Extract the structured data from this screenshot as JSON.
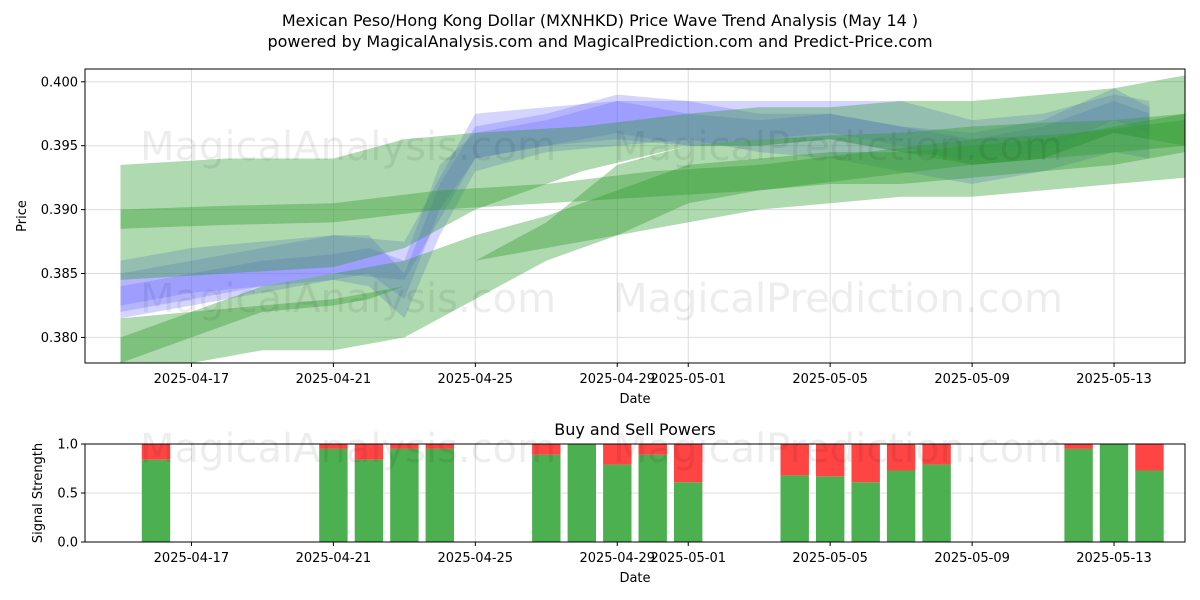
{
  "figure": {
    "title_line1": "Mexican Peso/Hong Kong Dollar (MXNHKD) Price Wave Trend Analysis (May 14 )",
    "title_line2": "powered by MagicalAnalysis.com and MagicalPrediction.com and Predict-Price.com",
    "watermark_left": "MagicalAnalysis.com",
    "watermark_right": "MagicalPrediction.com"
  },
  "colors": {
    "blue_band": "#6666ff",
    "green_band": "#2e9a2e",
    "buy": "#4caf50",
    "sell": "#ff4444",
    "grid": "#dddddd"
  },
  "chart_data": [
    {
      "type": "area",
      "title": "",
      "xlabel": "Date",
      "ylabel": "Price",
      "ylim": [
        0.378,
        0.401
      ],
      "xlim": [
        "2025-04-14",
        "2025-05-15"
      ],
      "x_ticks": [
        "2025-04-17",
        "2025-04-21",
        "2025-04-25",
        "2025-04-29",
        "2025-05-01",
        "2025-05-05",
        "2025-05-09",
        "2025-05-13"
      ],
      "y_ticks": [
        0.38,
        0.385,
        0.39,
        0.395,
        0.4
      ],
      "grid": true,
      "series": [
        {
          "color": "blue",
          "dates": [
            "2025-04-15",
            "2025-04-17",
            "2025-04-19",
            "2025-04-21",
            "2025-04-22",
            "2025-04-23",
            "2025-04-24",
            "2025-04-25",
            "2025-04-27",
            "2025-04-29",
            "2025-05-01",
            "2025-05-03",
            "2025-05-05",
            "2025-05-07",
            "2025-05-09",
            "2025-05-11",
            "2025-05-13",
            "2025-05-14"
          ],
          "low": [
            0.382,
            0.383,
            0.384,
            0.3845,
            0.385,
            0.383,
            0.39,
            0.394,
            0.395,
            0.396,
            0.395,
            0.395,
            0.3955,
            0.3945,
            0.394,
            0.3945,
            0.397,
            0.396
          ],
          "high": [
            0.384,
            0.385,
            0.386,
            0.3865,
            0.387,
            0.386,
            0.3935,
            0.396,
            0.397,
            0.3985,
            0.3975,
            0.397,
            0.3975,
            0.3965,
            0.396,
            0.397,
            0.3995,
            0.398
          ]
        },
        {
          "color": "blue",
          "dates": [
            "2025-04-15",
            "2025-04-17",
            "2025-04-19",
            "2025-04-21",
            "2025-04-22",
            "2025-04-23",
            "2025-04-24",
            "2025-04-25",
            "2025-04-27",
            "2025-04-29",
            "2025-05-01",
            "2025-05-03",
            "2025-05-05",
            "2025-05-07",
            "2025-05-09",
            "2025-05-11",
            "2025-05-13",
            "2025-05-14"
          ],
          "low": [
            0.3815,
            0.3825,
            0.3835,
            0.3845,
            0.384,
            0.3815,
            0.388,
            0.393,
            0.3945,
            0.395,
            0.3955,
            0.3945,
            0.394,
            0.393,
            0.392,
            0.393,
            0.3945,
            0.394
          ],
          "high": [
            0.385,
            0.386,
            0.387,
            0.388,
            0.388,
            0.385,
            0.392,
            0.3965,
            0.3975,
            0.399,
            0.3985,
            0.3975,
            0.3975,
            0.3965,
            0.3955,
            0.3965,
            0.3985,
            0.3975
          ]
        },
        {
          "color": "blue",
          "dates": [
            "2025-04-15",
            "2025-04-17",
            "2025-04-19",
            "2025-04-21",
            "2025-04-23",
            "2025-04-25",
            "2025-04-27",
            "2025-04-29",
            "2025-05-01",
            "2025-05-03",
            "2025-05-05",
            "2025-05-07",
            "2025-05-09",
            "2025-05-11",
            "2025-05-13",
            "2025-05-14"
          ],
          "low": [
            0.3825,
            0.3835,
            0.384,
            0.385,
            0.3845,
            0.394,
            0.395,
            0.3955,
            0.395,
            0.3955,
            0.396,
            0.395,
            0.3935,
            0.394,
            0.396,
            0.3955
          ],
          "high": [
            0.386,
            0.387,
            0.3875,
            0.388,
            0.3875,
            0.3975,
            0.398,
            0.3985,
            0.3985,
            0.3985,
            0.3985,
            0.3985,
            0.397,
            0.3975,
            0.399,
            0.3985
          ]
        },
        {
          "color": "green",
          "dates": [
            "2025-04-15",
            "2025-04-18",
            "2025-04-21",
            "2025-04-23",
            "2025-04-25",
            "2025-04-28",
            "2025-05-01",
            "2025-05-03",
            "2025-05-05",
            "2025-05-07",
            "2025-05-09",
            "2025-05-11",
            "2025-05-13",
            "2025-05-15"
          ],
          "low": [
            0.3845,
            0.385,
            0.3855,
            0.387,
            0.39,
            0.393,
            0.395,
            0.395,
            0.3955,
            0.3945,
            0.3935,
            0.394,
            0.396,
            0.395
          ],
          "high": [
            0.3935,
            0.394,
            0.394,
            0.3955,
            0.396,
            0.3965,
            0.3975,
            0.398,
            0.398,
            0.3985,
            0.3985,
            0.399,
            0.3995,
            0.4005
          ]
        },
        {
          "color": "green",
          "dates": [
            "2025-04-15",
            "2025-04-18",
            "2025-04-21",
            "2025-04-24",
            "2025-04-27",
            "2025-04-30",
            "2025-05-03",
            "2025-05-06",
            "2025-05-09",
            "2025-05-12",
            "2025-05-15"
          ],
          "low": [
            0.3885,
            0.3888,
            0.389,
            0.39,
            0.3905,
            0.391,
            0.3915,
            0.3925,
            0.3935,
            0.3942,
            0.395
          ],
          "high": [
            0.39,
            0.3903,
            0.3905,
            0.3915,
            0.392,
            0.393,
            0.3935,
            0.3945,
            0.3955,
            0.396,
            0.397
          ]
        },
        {
          "color": "green",
          "dates": [
            "2025-04-15",
            "2025-04-17",
            "2025-04-19",
            "2025-04-21",
            "2025-04-22",
            "2025-04-23",
            "2025-04-25",
            "2025-04-27",
            "2025-04-29",
            "2025-05-01",
            "2025-05-03",
            "2025-05-05",
            "2025-05-07",
            "2025-05-09",
            "2025-05-11",
            "2025-05-13",
            "2025-05-15"
          ],
          "low": [
            0.378,
            0.38,
            0.382,
            0.3825,
            0.383,
            0.384,
            0.386,
            0.387,
            0.388,
            0.3905,
            0.3915,
            0.392,
            0.392,
            0.3925,
            0.393,
            0.3935,
            0.3945
          ],
          "high": [
            0.38,
            0.382,
            0.384,
            0.385,
            0.3855,
            0.386,
            0.388,
            0.3895,
            0.3915,
            0.3935,
            0.394,
            0.3945,
            0.3945,
            0.395,
            0.3955,
            0.3965,
            0.3975
          ]
        },
        {
          "color": "green",
          "dates": [
            "2025-04-15",
            "2025-04-17",
            "2025-04-19",
            "2025-04-21",
            "2025-04-23",
            "2025-04-25",
            "2025-04-27",
            "2025-04-29",
            "2025-05-01",
            "2025-05-03",
            "2025-05-05",
            "2025-05-07",
            "2025-05-09",
            "2025-05-11",
            "2025-05-13",
            "2025-05-15"
          ],
          "low": [
            0.376,
            0.378,
            0.379,
            0.379,
            0.38,
            0.383,
            0.386,
            0.388,
            0.389,
            0.39,
            0.3905,
            0.391,
            0.391,
            0.3915,
            0.392,
            0.3925
          ],
          "high": [
            0.3815,
            0.382,
            0.3825,
            0.383,
            0.384,
            0.386,
            0.389,
            0.3935,
            0.395,
            0.3955,
            0.3958,
            0.396,
            0.3965,
            0.3968,
            0.397,
            0.3975
          ]
        }
      ]
    },
    {
      "type": "bar",
      "title": "Buy and Sell Powers",
      "xlabel": "Date",
      "ylabel": "Signal Strength",
      "ylim": [
        0,
        1.0
      ],
      "y_ticks": [
        0.0,
        0.5,
        1.0
      ],
      "x_ticks": [
        "2025-04-17",
        "2025-04-21",
        "2025-04-25",
        "2025-04-29",
        "2025-05-01",
        "2025-05-05",
        "2025-05-09",
        "2025-05-13"
      ],
      "grid": true,
      "dates": [
        "2025-04-16",
        "2025-04-21",
        "2025-04-22",
        "2025-04-23",
        "2025-04-24",
        "2025-04-27",
        "2025-04-28",
        "2025-04-29",
        "2025-04-30",
        "2025-05-01",
        "2025-05-04",
        "2025-05-05",
        "2025-05-06",
        "2025-05-07",
        "2025-05-08",
        "2025-05-12",
        "2025-05-13",
        "2025-05-14"
      ],
      "buy": [
        0.84,
        0.95,
        0.84,
        0.95,
        0.95,
        0.89,
        1.0,
        0.79,
        0.89,
        0.61,
        0.68,
        0.67,
        0.61,
        0.73,
        0.79,
        0.95,
        1.0,
        0.73
      ]
    }
  ]
}
